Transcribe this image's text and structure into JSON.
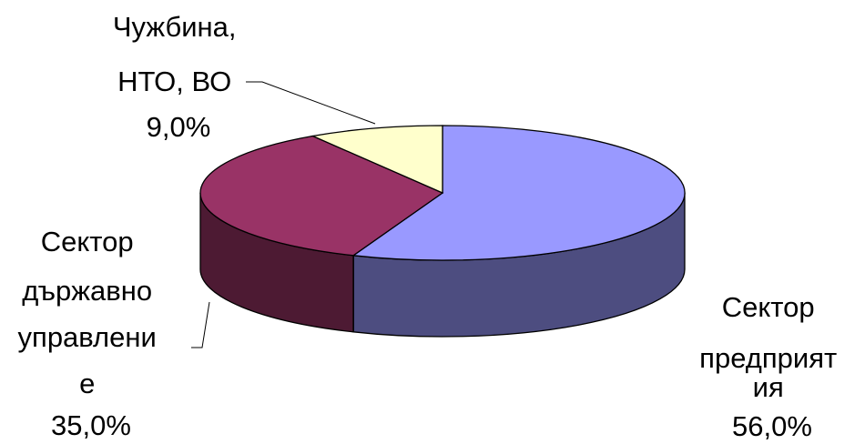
{
  "chart_data": {
    "type": "pie",
    "style": "3d",
    "labels_inline": true,
    "slices": [
      {
        "label_lines": [
          "Сектор",
          "предприят",
          "ия"
        ],
        "value": 56.0,
        "value_label": "56,0%",
        "top_color": "#9999ff",
        "side_color": "#4d4d80"
      },
      {
        "label_lines": [
          "Сектор",
          "държавно",
          "управлени",
          "е"
        ],
        "value": 35.0,
        "value_label": "35,0%",
        "top_color": "#993366",
        "side_color": "#4d1a33"
      },
      {
        "label_lines": [
          "Чужбина,",
          "НТО, ВО"
        ],
        "value": 9.0,
        "value_label": "9,0%",
        "top_color": "#ffffcc",
        "side_color": "#808066"
      }
    ]
  }
}
